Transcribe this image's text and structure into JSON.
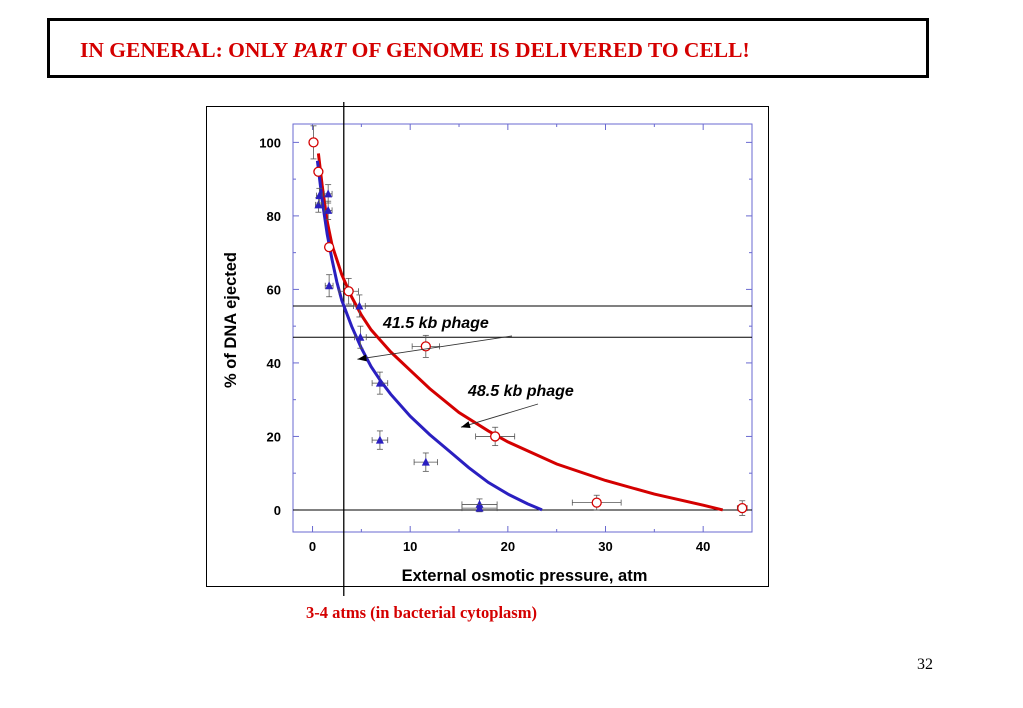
{
  "slide": {
    "title_prefix": "IN GENERAL: ONLY ",
    "title_emphasis": "PART",
    "title_suffix": " OF GENOME IS DELIVERED TO CELL!",
    "annotation": "3-4 atms (in bacterial cytoplasm)",
    "page_number": "32"
  },
  "chart_data": {
    "type": "scatter",
    "title": "",
    "xlabel": "External osmotic pressure, atm",
    "ylabel": "% of DNA ejected",
    "xlim": [
      -2,
      45
    ],
    "ylim": [
      -6,
      105
    ],
    "xticks": [
      0,
      10,
      20,
      30,
      40
    ],
    "yticks": [
      0,
      20,
      40,
      60,
      80,
      100
    ],
    "grid": false,
    "legend": "none",
    "annotations": [
      {
        "text": "41.5 kb phage",
        "series": "41.5 kb phage",
        "arrow_to": [
          4.6,
          41
        ]
      },
      {
        "text": "48.5 kb phage",
        "series": "48.5 kb phage",
        "arrow_to": [
          15.2,
          22.5
        ]
      }
    ],
    "reference_lines": {
      "vertical_x": 3.2,
      "horizontal_y": [
        55.5,
        47
      ]
    },
    "series": [
      {
        "name": "48.5 kb phage",
        "marker": "circle",
        "color": "#d40000",
        "points": [
          {
            "x": 0.1,
            "y": 100,
            "xerr": 0,
            "yerr": 4.5
          },
          {
            "x": 0.6,
            "y": 92,
            "xerr": 0,
            "yerr": 1
          },
          {
            "x": 1.7,
            "y": 71.5,
            "xerr": 0,
            "yerr": 1
          },
          {
            "x": 3.7,
            "y": 59.5,
            "xerr": 1,
            "yerr": 3.5
          },
          {
            "x": 11.6,
            "y": 44.5,
            "xerr": 1.4,
            "yerr": 3
          },
          {
            "x": 18.7,
            "y": 20,
            "xerr": 2,
            "yerr": 2.5
          },
          {
            "x": 29.1,
            "y": 2,
            "xerr": 2.5,
            "yerr": 2
          },
          {
            "x": 44,
            "y": 0.5,
            "xerr": 0.5,
            "yerr": 2
          }
        ],
        "fit_curve": [
          [
            0.6,
            97
          ],
          [
            1,
            88
          ],
          [
            1.5,
            78.5
          ],
          [
            2,
            72
          ],
          [
            3,
            64
          ],
          [
            4,
            58
          ],
          [
            5,
            53
          ],
          [
            6,
            49
          ],
          [
            8,
            43
          ],
          [
            10,
            38
          ],
          [
            12,
            33
          ],
          [
            15,
            26.5
          ],
          [
            18,
            21.5
          ],
          [
            20,
            18.5
          ],
          [
            25,
            12.5
          ],
          [
            30,
            8
          ],
          [
            35,
            4.3
          ],
          [
            40,
            1.3
          ],
          [
            42,
            0
          ]
        ]
      },
      {
        "name": "41.5 kb phage",
        "marker": "triangle",
        "color": "#2a1fc0",
        "points": [
          {
            "x": 0.6,
            "y": 83,
            "xerr": 0.3,
            "yerr": 2
          },
          {
            "x": 0.7,
            "y": 85.5,
            "xerr": 0.3,
            "yerr": 2
          },
          {
            "x": 1.6,
            "y": 81.5,
            "xerr": 0.4,
            "yerr": 2.5
          },
          {
            "x": 1.6,
            "y": 86,
            "xerr": 0.4,
            "yerr": 2.5
          },
          {
            "x": 1.7,
            "y": 61,
            "xerr": 0.4,
            "yerr": 3
          },
          {
            "x": 4.8,
            "y": 55.5,
            "xerr": 0.6,
            "yerr": 3
          },
          {
            "x": 4.9,
            "y": 47,
            "xerr": 0.6,
            "yerr": 3
          },
          {
            "x": 6.9,
            "y": 34.5,
            "xerr": 0.8,
            "yerr": 3
          },
          {
            "x": 6.9,
            "y": 19,
            "xerr": 0.8,
            "yerr": 2.5
          },
          {
            "x": 11.6,
            "y": 13,
            "xerr": 1.2,
            "yerr": 2.5
          },
          {
            "x": 17.1,
            "y": 1.5,
            "xerr": 1.8,
            "yerr": 1.5
          },
          {
            "x": 17.1,
            "y": 0.5,
            "xerr": 1.8,
            "yerr": 1
          }
        ],
        "fit_curve": [
          [
            0.5,
            95
          ],
          [
            1,
            84
          ],
          [
            1.5,
            75
          ],
          [
            2,
            68
          ],
          [
            2.5,
            62
          ],
          [
            3,
            57
          ],
          [
            4,
            50
          ],
          [
            5,
            44
          ],
          [
            6,
            39
          ],
          [
            7,
            35
          ],
          [
            8,
            31.5
          ],
          [
            10,
            25.5
          ],
          [
            12,
            20.5
          ],
          [
            14,
            16
          ],
          [
            16,
            11.5
          ],
          [
            18,
            7.5
          ],
          [
            20,
            4.3
          ],
          [
            22,
            1.7
          ],
          [
            23.5,
            0
          ]
        ]
      }
    ]
  }
}
